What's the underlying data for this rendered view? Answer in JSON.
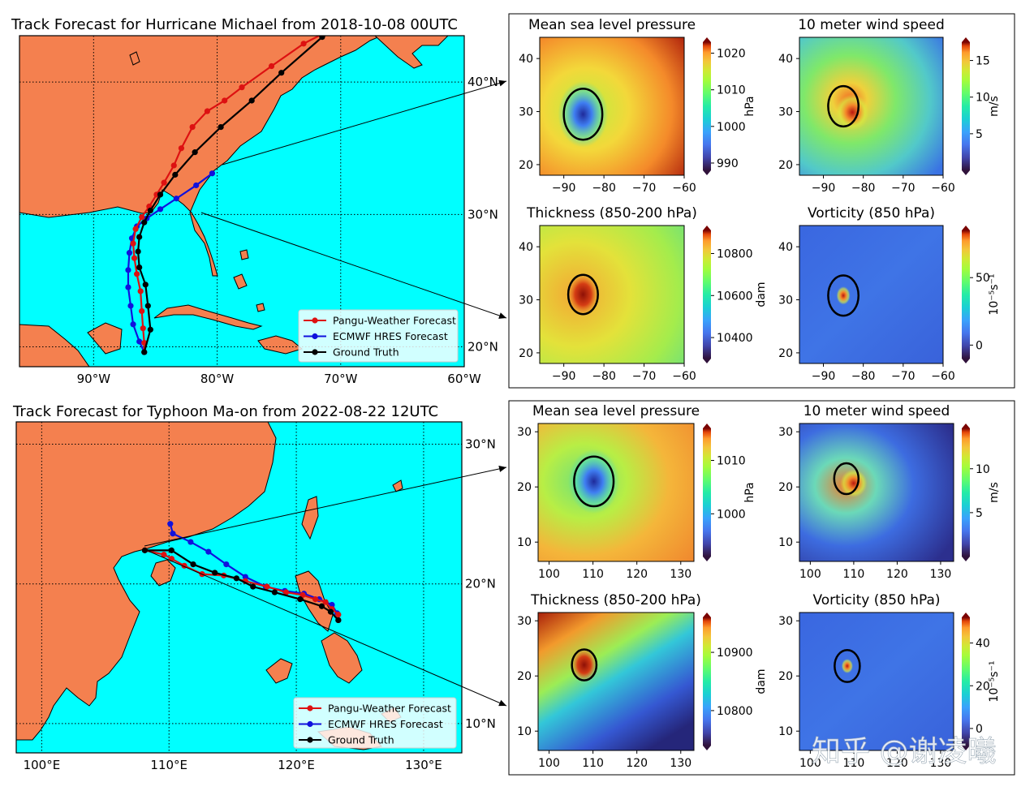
{
  "figure": {
    "watermark": "知乎 @谢凌曦"
  },
  "chart_data": [
    {
      "type": "line",
      "title": "Track Forecast for Hurricane Michael from 2018-10-08 00UTC",
      "xlim": [
        -96,
        -60
      ],
      "ylim": [
        18.5,
        43.5
      ],
      "x_ticks": [
        -90,
        -80,
        -70,
        -60
      ],
      "x_tick_labels": [
        "90°W",
        "80°W",
        "70°W",
        "60°W"
      ],
      "y_ticks": [
        20,
        30,
        40
      ],
      "y_tick_labels": [
        "20°N",
        "30°N",
        "40°N"
      ],
      "grid": true,
      "legend_position": "lower-right",
      "colors": {
        "ocean": "#00ffff",
        "land": "#f4804f"
      },
      "series": [
        {
          "name": "Pangu-Weather Forecast",
          "color": "#dd1111",
          "lon": [
            -85.9,
            -85.9,
            -86.0,
            -86.1,
            -86.2,
            -86.5,
            -86.7,
            -86.8,
            -86.6,
            -86.1,
            -85.5,
            -84.9,
            -84.3,
            -83.5,
            -82.9,
            -82.0,
            -80.8,
            -79.4,
            -78.0,
            -75.6,
            -73.0,
            -66.9
          ],
          "lat": [
            19.6,
            20.3,
            21.4,
            22.7,
            24.2,
            25.5,
            26.7,
            27.8,
            28.9,
            29.8,
            30.6,
            31.5,
            32.4,
            33.7,
            35.0,
            36.6,
            37.8,
            38.6,
            39.6,
            41.2,
            42.9,
            45.8
          ]
        },
        {
          "name": "ECMWF HRES Forecast",
          "color": "#1111dd",
          "lon": [
            -85.9,
            -86.3,
            -86.8,
            -87.0,
            -87.2,
            -87.2,
            -87.1,
            -86.9,
            -86.5,
            -85.7,
            -84.6,
            -83.3,
            -81.7,
            -80.4
          ],
          "lat": [
            19.6,
            20.4,
            21.7,
            23.1,
            24.5,
            25.8,
            27.1,
            28.2,
            29.1,
            29.7,
            30.4,
            31.2,
            32.2,
            33.1
          ]
        },
        {
          "name": "Ground Truth",
          "color": "#000000",
          "lon": [
            -85.9,
            -85.4,
            -85.6,
            -85.8,
            -86.3,
            -86.4,
            -86.3,
            -85.9,
            -85.4,
            -84.6,
            -83.4,
            -81.8,
            -79.7,
            -77.2,
            -74.8,
            -71.5,
            -66.1
          ],
          "lat": [
            19.6,
            21.3,
            23.1,
            24.7,
            26.0,
            27.2,
            28.3,
            29.4,
            30.3,
            31.5,
            33.0,
            34.7,
            36.6,
            38.6,
            40.7,
            43.4,
            46.1
          ]
        }
      ]
    },
    {
      "type": "line",
      "title": "Track Forecast for Typhoon Ma-on from 2022-08-22 12UTC",
      "xlim": [
        98,
        133
      ],
      "ylim": [
        7.9,
        31.6
      ],
      "x_ticks": [
        100,
        110,
        120,
        130
      ],
      "x_tick_labels": [
        "100°E",
        "110°E",
        "120°E",
        "130°E"
      ],
      "y_ticks": [
        10,
        20,
        30
      ],
      "y_tick_labels": [
        "10°N",
        "20°N",
        "30°N"
      ],
      "grid": true,
      "legend_position": "lower-right",
      "colors": {
        "ocean": "#00ffff",
        "land": "#f4804f"
      },
      "series": [
        {
          "name": "Pangu-Weather Forecast",
          "color": "#dd1111",
          "lon": [
            123.3,
            123.3,
            122.8,
            122.3,
            121.5,
            120.5,
            119.2,
            117.7,
            116.0,
            114.3,
            112.6,
            111.2,
            110.2,
            109.6,
            108.1
          ],
          "lat": [
            17.4,
            17.8,
            18.2,
            18.7,
            18.9,
            19.2,
            19.4,
            19.8,
            20.2,
            20.6,
            20.7,
            21.3,
            21.8,
            22.1,
            22.4
          ]
        },
        {
          "name": "ECMWF HRES Forecast",
          "color": "#1111dd",
          "lon": [
            123.3,
            123.2,
            122.8,
            121.8,
            120.6,
            119.1,
            117.6,
            116.0,
            114.5,
            113.1,
            111.7,
            110.3,
            110.1
          ],
          "lat": [
            17.4,
            17.9,
            18.5,
            18.9,
            19.3,
            19.5,
            19.8,
            20.5,
            21.4,
            22.3,
            23.0,
            23.6,
            24.3
          ]
        },
        {
          "name": "Ground Truth",
          "color": "#000000",
          "lon": [
            123.3,
            122.7,
            122.0,
            120.3,
            118.3,
            116.6,
            115.3,
            113.6,
            111.9,
            110.2,
            108.1
          ],
          "lat": [
            17.4,
            18.0,
            18.4,
            18.9,
            19.4,
            19.8,
            20.4,
            20.8,
            21.4,
            22.4,
            22.4
          ]
        }
      ]
    },
    {
      "type": "heatmap",
      "title": "Mean sea level pressure",
      "panel": "michael",
      "xlim": [
        -96,
        -60
      ],
      "ylim": [
        18,
        44
      ],
      "x_ticks": [
        -90,
        -80,
        -70,
        -60
      ],
      "x_tick_labels": [
        "−90",
        "−80",
        "−70",
        "−60"
      ],
      "y_ticks": [
        20,
        30,
        40
      ],
      "y_tick_labels": [
        "20",
        "30",
        "40"
      ],
      "colorbar": {
        "label": "hPa",
        "ticks": [
          990,
          1000,
          1010,
          1020
        ],
        "tick_labels": [
          "990",
          "1000",
          "1010",
          "1020"
        ],
        "range": [
          988,
          1023
        ]
      },
      "circle": {
        "lon": -85.2,
        "lat": 29.5,
        "radius_deg": 4.8
      }
    },
    {
      "type": "heatmap",
      "title": "10 meter wind speed",
      "panel": "michael",
      "xlim": [
        -96,
        -60
      ],
      "ylim": [
        18,
        44
      ],
      "x_ticks": [
        -90,
        -80,
        -70,
        -60
      ],
      "x_tick_labels": [
        "−90",
        "−80",
        "−70",
        "−60"
      ],
      "y_ticks": [
        20,
        30,
        40
      ],
      "y_tick_labels": [
        "20",
        "30",
        "40"
      ],
      "colorbar": {
        "label": "m/s",
        "ticks": [
          5,
          10,
          15
        ],
        "tick_labels": [
          "5",
          "10",
          "15"
        ],
        "range": [
          0,
          17.5
        ]
      },
      "circle": {
        "lon": -85.0,
        "lat": 31.0,
        "radius_deg": 3.8
      }
    },
    {
      "type": "heatmap",
      "title": "Thickness (850-200 hPa)",
      "panel": "michael",
      "xlim": [
        -96,
        -60
      ],
      "ylim": [
        18,
        44
      ],
      "x_ticks": [
        -90,
        -80,
        -70,
        -60
      ],
      "x_tick_labels": [
        "−90",
        "−80",
        "−70",
        "−60"
      ],
      "y_ticks": [
        20,
        30,
        40
      ],
      "y_tick_labels": [
        "20",
        "30",
        "40"
      ],
      "colorbar": {
        "label": "dam",
        "ticks": [
          10400,
          10600,
          10800
        ],
        "tick_labels": [
          "10400",
          "10600",
          "10800"
        ],
        "range": [
          10300,
          10910
        ]
      },
      "circle": {
        "lon": -85.2,
        "lat": 31.0,
        "radius_deg": 3.7
      }
    },
    {
      "type": "heatmap",
      "title": "Vorticity (850 hPa)",
      "panel": "michael",
      "xlim": [
        -96,
        -60
      ],
      "ylim": [
        18,
        44
      ],
      "x_ticks": [
        -90,
        -80,
        -70,
        -60
      ],
      "x_tick_labels": [
        "−90",
        "−80",
        "−70",
        "−60"
      ],
      "y_ticks": [
        20,
        30,
        40
      ],
      "y_tick_labels": [
        "20",
        "30",
        "40"
      ],
      "colorbar": {
        "label": "10⁻⁵s⁻¹",
        "ticks": [
          0,
          50
        ],
        "tick_labels": [
          "0",
          "50"
        ],
        "range": [
          -10,
          85
        ]
      },
      "circle": {
        "lon": -85.0,
        "lat": 30.8,
        "radius_deg": 3.8
      }
    },
    {
      "type": "heatmap",
      "title": "Mean sea level pressure",
      "panel": "maon",
      "xlim": [
        97.5,
        133
      ],
      "ylim": [
        6.5,
        31.5
      ],
      "x_ticks": [
        100,
        110,
        120,
        130
      ],
      "x_tick_labels": [
        "100",
        "110",
        "120",
        "130"
      ],
      "y_ticks": [
        10,
        20,
        30
      ],
      "y_tick_labels": [
        "10",
        "20",
        "30"
      ],
      "colorbar": {
        "label": "hPa",
        "ticks": [
          1000,
          1010
        ],
        "tick_labels": [
          "1000",
          "1010"
        ],
        "range": [
          992,
          1016
        ]
      },
      "circle": {
        "lon": 110.2,
        "lat": 21.0,
        "radius_deg": 4.5
      }
    },
    {
      "type": "heatmap",
      "title": "10 meter wind speed",
      "panel": "maon",
      "xlim": [
        97.5,
        133
      ],
      "ylim": [
        6.5,
        31.5
      ],
      "x_ticks": [
        100,
        110,
        120,
        130
      ],
      "x_tick_labels": [
        "100",
        "110",
        "120",
        "130"
      ],
      "y_ticks": [
        10,
        20,
        30
      ],
      "y_tick_labels": [
        "10",
        "20",
        "30"
      ],
      "colorbar": {
        "label": "m/s",
        "ticks": [
          5,
          10
        ],
        "tick_labels": [
          "5",
          "10"
        ],
        "range": [
          0,
          14.6
        ]
      },
      "circle": {
        "lon": 108.3,
        "lat": 21.5,
        "radius_deg": 2.8
      }
    },
    {
      "type": "heatmap",
      "title": "Thickness (850-200 hPa)",
      "panel": "maon",
      "xlim": [
        97.5,
        133
      ],
      "ylim": [
        6.5,
        31.5
      ],
      "x_ticks": [
        100,
        110,
        120,
        130
      ],
      "x_tick_labels": [
        "100",
        "110",
        "120",
        "130"
      ],
      "y_ticks": [
        10,
        20,
        30
      ],
      "y_tick_labels": [
        "10",
        "20",
        "30"
      ],
      "colorbar": {
        "label": "dam",
        "ticks": [
          10800,
          10900
        ],
        "tick_labels": [
          "10800",
          "10900"
        ],
        "range": [
          10740,
          10960
        ]
      },
      "circle": {
        "lon": 108.0,
        "lat": 22.0,
        "radius_deg": 2.8
      }
    },
    {
      "type": "heatmap",
      "title": "Vorticity (850 hPa)",
      "panel": "maon",
      "xlim": [
        97.5,
        133
      ],
      "ylim": [
        6.5,
        31.5
      ],
      "x_ticks": [
        100,
        110,
        120,
        130
      ],
      "x_tick_labels": [
        "100",
        "110",
        "120",
        "130"
      ],
      "y_ticks": [
        10,
        20,
        30
      ],
      "y_tick_labels": [
        "10",
        "20",
        "30"
      ],
      "colorbar": {
        "label": "10⁻⁵s⁻¹",
        "ticks": [
          0,
          20,
          40
        ],
        "tick_labels": [
          "0",
          "20",
          "40"
        ],
        "range": [
          -8,
          52
        ]
      },
      "circle": {
        "lon": 108.5,
        "lat": 21.8,
        "radius_deg": 2.9
      }
    }
  ]
}
